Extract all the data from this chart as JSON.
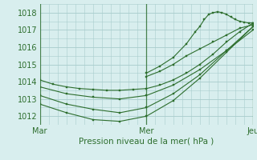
{
  "title": "",
  "xlabel": "Pression niveau de la mer( hPa )",
  "bg_color": "#d8eeee",
  "grid_color": "#a8cccc",
  "line_color": "#2d6e2d",
  "marker_color": "#2d6e2d",
  "ylim": [
    1011.5,
    1018.5
  ],
  "xlim": [
    0,
    48
  ],
  "xtick_positions": [
    0,
    24,
    48
  ],
  "xtick_labels": [
    "Mar",
    "Mer",
    "Jeu"
  ],
  "ytick_positions": [
    1012,
    1013,
    1014,
    1015,
    1016,
    1017,
    1018
  ],
  "series": [
    {
      "x": [
        0,
        3,
        6,
        9,
        12,
        15,
        18,
        21,
        24,
        27,
        30,
        33,
        36,
        39,
        42,
        45,
        48
      ],
      "y": [
        1014.1,
        1013.85,
        1013.7,
        1013.6,
        1013.55,
        1013.5,
        1013.5,
        1013.55,
        1013.6,
        1013.8,
        1014.1,
        1014.5,
        1015.0,
        1015.6,
        1016.3,
        1016.9,
        1017.4
      ]
    },
    {
      "x": [
        0,
        6,
        12,
        18,
        24,
        30,
        36,
        42,
        48
      ],
      "y": [
        1013.7,
        1013.3,
        1013.1,
        1013.0,
        1013.2,
        1013.8,
        1014.7,
        1015.8,
        1017.0
      ]
    },
    {
      "x": [
        0,
        6,
        12,
        18,
        24,
        30,
        36,
        42,
        48
      ],
      "y": [
        1013.2,
        1012.7,
        1012.4,
        1012.2,
        1012.5,
        1013.3,
        1014.4,
        1015.8,
        1017.2
      ]
    },
    {
      "x": [
        0,
        6,
        12,
        18,
        24,
        30,
        36,
        42,
        48
      ],
      "y": [
        1012.7,
        1012.2,
        1011.8,
        1011.7,
        1012.0,
        1012.9,
        1014.2,
        1015.7,
        1017.2
      ]
    },
    {
      "x": [
        24,
        27,
        30,
        33,
        35,
        36,
        37,
        38,
        39,
        40,
        41,
        42,
        43,
        44,
        45,
        46,
        47,
        48
      ],
      "y": [
        1014.5,
        1014.9,
        1015.4,
        1016.2,
        1016.9,
        1017.2,
        1017.6,
        1017.9,
        1018.0,
        1018.05,
        1018.0,
        1017.9,
        1017.75,
        1017.6,
        1017.5,
        1017.45,
        1017.4,
        1017.4
      ]
    },
    {
      "x": [
        24,
        27,
        30,
        33,
        36,
        39,
        42,
        45,
        48
      ],
      "y": [
        1014.3,
        1014.6,
        1015.0,
        1015.5,
        1015.9,
        1016.3,
        1016.7,
        1017.1,
        1017.3
      ]
    }
  ]
}
